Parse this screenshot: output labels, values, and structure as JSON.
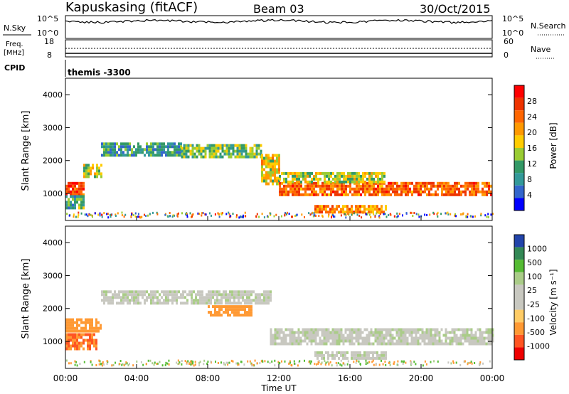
{
  "header": {
    "station": "Kapuskasing (fitACF)",
    "beam": "Beam 03",
    "date": "30/Oct/2015"
  },
  "status_panel": {
    "nsky_label": "N.Sky",
    "nsky_ticks": [
      "10^5",
      "10^0"
    ],
    "nsearch_label": "N.Search",
    "nsearch_ticks": [
      "10^5",
      "10^0"
    ],
    "freq_label_1": "Freq.",
    "freq_label_2": "[MHz]",
    "freq_ticks": [
      "18",
      "8"
    ],
    "nave_label": "Nave",
    "nave_ticks": [
      "60",
      "0"
    ],
    "cpid_label": "CPID",
    "cpid_value": "themis -3300"
  },
  "axes": {
    "ylabel": "Slant Range [km]",
    "xlabel": "Time UT",
    "yticks": [
      "4000",
      "3000",
      "2000",
      "1000"
    ],
    "xticks": [
      "00:00",
      "04:00",
      "08:00",
      "12:00",
      "16:00",
      "20:00",
      "00:00"
    ]
  },
  "colorbars": {
    "power": {
      "label": "Power [dB]",
      "ticks": [
        "28",
        "24",
        "20",
        "16",
        "12",
        "8",
        "4"
      ],
      "colors": [
        "#ff0000",
        "#ee3300",
        "#ff6600",
        "#ff9900",
        "#ffcc00",
        "#99cc33",
        "#339966",
        "#339999",
        "#3366cc",
        "#0000ff"
      ]
    },
    "velocity": {
      "label": "Velocity [m s⁻¹]",
      "ticks": [
        "1000",
        "500",
        "100",
        "25",
        "-25",
        "-100",
        "-500",
        "-1000"
      ],
      "colors": [
        "#2244aa",
        "#338855",
        "#55bb33",
        "#aacc88",
        "#c8c8c0",
        "#c8c8c0",
        "#ffcc66",
        "#ff9933",
        "#ff5522",
        "#ee0000"
      ]
    }
  },
  "chart_data": [
    {
      "type": "heatmap",
      "name": "power",
      "x_unit": "hours UT",
      "y_unit": "km",
      "xlim": [
        0,
        24
      ],
      "ylim": [
        180,
        4500
      ],
      "bands": [
        {
          "x0": 0.0,
          "x1": 1.0,
          "y0": 950,
          "y1": 1350,
          "value": 26
        },
        {
          "x0": 0.0,
          "x1": 1.0,
          "y0": 600,
          "y1": 950,
          "value": 12
        },
        {
          "x0": 1.0,
          "x1": 2.0,
          "y0": 1500,
          "y1": 1900,
          "value": 16
        },
        {
          "x0": 2.0,
          "x1": 6.5,
          "y0": 2200,
          "y1": 2550,
          "value": 10
        },
        {
          "x0": 6.5,
          "x1": 11.0,
          "y0": 2100,
          "y1": 2500,
          "value": 14
        },
        {
          "x0": 11.0,
          "x1": 12.0,
          "y0": 1300,
          "y1": 2200,
          "value": 18
        },
        {
          "x0": 12.0,
          "x1": 24.0,
          "y0": 1000,
          "y1": 1350,
          "value": 24
        },
        {
          "x0": 12.0,
          "x1": 18.0,
          "y0": 1350,
          "y1": 1650,
          "value": 16
        },
        {
          "x0": 14.0,
          "x1": 18.0,
          "y0": 450,
          "y1": 650,
          "value": 22
        }
      ],
      "scatter_range": [
        300,
        450
      ]
    },
    {
      "type": "heatmap",
      "name": "velocity",
      "x_unit": "hours UT",
      "y_unit": "km",
      "xlim": [
        0,
        24
      ],
      "ylim": [
        180,
        4500
      ],
      "bands": [
        {
          "x0": 0.0,
          "x1": 1.8,
          "y0": 750,
          "y1": 1250,
          "value": -300
        },
        {
          "x0": 0.0,
          "x1": 2.0,
          "y0": 1300,
          "y1": 1700,
          "value": -150
        },
        {
          "x0": 2.0,
          "x1": 11.5,
          "y0": 2150,
          "y1": 2550,
          "value": 0
        },
        {
          "x0": 11.5,
          "x1": 24.0,
          "y0": 900,
          "y1": 1400,
          "value": 0
        },
        {
          "x0": 14.0,
          "x1": 18.0,
          "y0": 450,
          "y1": 700,
          "value": 0
        },
        {
          "x0": 8.0,
          "x1": 10.5,
          "y0": 1800,
          "y1": 2100,
          "value": -200
        }
      ]
    }
  ]
}
